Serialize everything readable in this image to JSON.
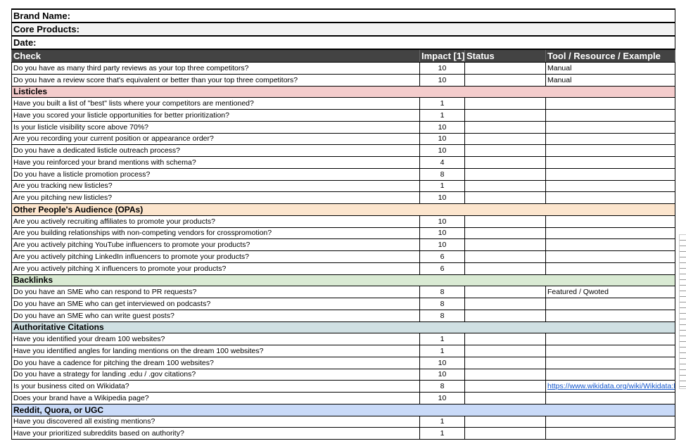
{
  "meta": {
    "brand": "Brand Name:",
    "core": "Core Products:",
    "date": "Date:"
  },
  "header": {
    "check": "Check",
    "impact": "Impact [1]",
    "status": "Status",
    "tool": "Tool / Resource / Example"
  },
  "colors": {
    "header": "#434343",
    "Listicles": "#f4cccc",
    "Other People's Audience (OPAs)": "#fce5cd",
    "Backlinks": "#d9ead3",
    "Authoritative Citations": "#d0e0e3",
    "Reddit, Quora, or UGC": "#c9daf8"
  },
  "rows": [
    {
      "check": "Do you have as many third party reviews as your top three competitors?",
      "impact": "10",
      "tool": "Manual"
    },
    {
      "check": "Do you have a review score that's equivalent or better than your top three competitors?",
      "impact": "10",
      "tool": "Manual"
    },
    {
      "section": "Listicles"
    },
    {
      "check": "Have you built a list of \"best\" lists where your competitors are mentioned?",
      "impact": "1"
    },
    {
      "check": "Have you scored your listicle opportunities for better prioritization?",
      "impact": "1"
    },
    {
      "check": "Is your listicle visibility score above 70%?",
      "impact": "10"
    },
    {
      "check": "Are you recording your current position or appearance order?",
      "impact": "10"
    },
    {
      "check": "Do you have a dedicated listicle outreach process?",
      "impact": "10"
    },
    {
      "check": "Have you reinforced your brand mentions with schema?",
      "impact": "4"
    },
    {
      "check": "Do you have a listicle promotion process?",
      "impact": "8"
    },
    {
      "check": "Are you tracking new listicles?",
      "impact": "1"
    },
    {
      "check": "Are you pitching new listicles?",
      "impact": "10"
    },
    {
      "section": "Other People's Audience (OPAs)"
    },
    {
      "check": "Are you actively recruiting affiliates to promote your products?",
      "impact": "10"
    },
    {
      "check": "Are you building relationships with non-competing vendors for crosspromotion?",
      "impact": "10"
    },
    {
      "check": "Are you actively pitching YouTube influencers to promote your products?",
      "impact": "10"
    },
    {
      "check": "Are you actively pitching LinkedIn influencers to promote your products?",
      "impact": "6"
    },
    {
      "check": "Are you actively pitching X influencers to promote your products?",
      "impact": "6"
    },
    {
      "section": "Backlinks"
    },
    {
      "check": "Do you have an SME who can respond to PR requests?",
      "impact": "8",
      "tool": "Featured / Qwoted"
    },
    {
      "check": "Do you have an SME who can get interviewed on podcasts?",
      "impact": "8"
    },
    {
      "check": "Do you have an SME who can write guest posts?",
      "impact": "8"
    },
    {
      "section": "Authoritative Citations"
    },
    {
      "check": "Have you identified your dream 100 websites?",
      "impact": "1"
    },
    {
      "check": "Have you identified angles for landing mentions on the dream 100 websites?",
      "impact": "1"
    },
    {
      "check": "Do you have a cadence for pitching the dream 100 websites?",
      "impact": "10"
    },
    {
      "check": "Do you have a strategy for landing .edu / .gov citations?",
      "impact": "10"
    },
    {
      "check": "Is your business cited on Wikidata?",
      "impact": "8",
      "tool": "https://www.wikidata.org/wiki/Wikidata:N",
      "link": true
    },
    {
      "check": "Does your brand have a Wikipedia page?",
      "impact": "10"
    },
    {
      "section": "Reddit, Quora, or UGC"
    },
    {
      "check": "Have you discovered all existing mentions?",
      "impact": "1"
    },
    {
      "check": "Have your prioritized subreddits based on authority?",
      "impact": "1"
    }
  ]
}
